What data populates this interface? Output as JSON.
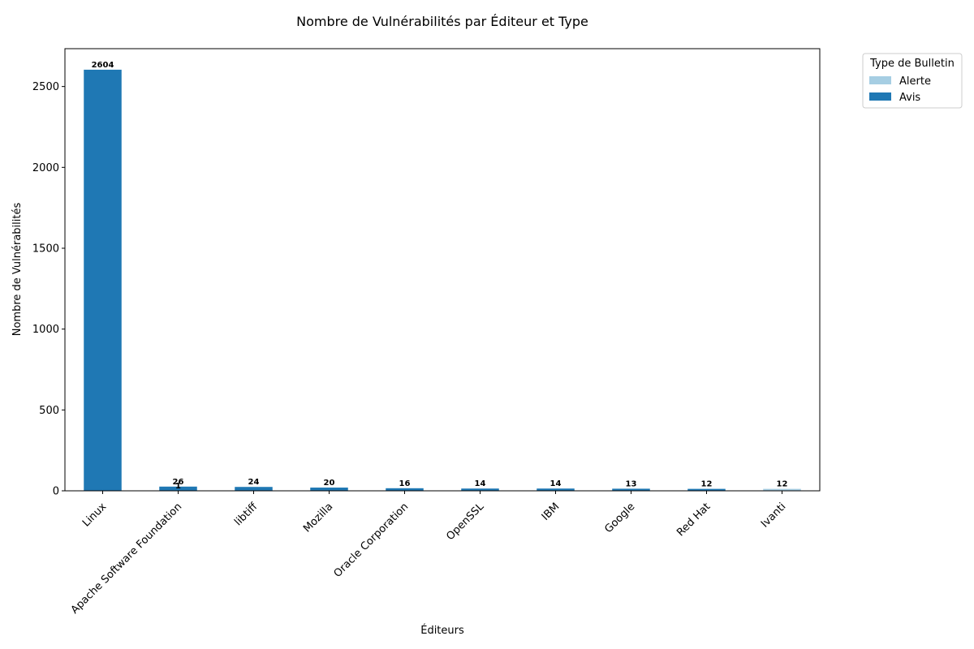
{
  "chart_data": {
    "type": "bar",
    "stacked": true,
    "title": "Nombre de Vulnérabilités par Éditeur et Type",
    "xlabel": "Éditeurs",
    "ylabel": "Nombre de Vulnérabilités",
    "ylim": [
      0,
      2734
    ],
    "yticks": [
      0,
      500,
      1000,
      1500,
      2000,
      2500
    ],
    "grid": false,
    "categories": [
      "Linux",
      "Apache Software Foundation",
      "libtiff",
      "Mozilla",
      "Oracle Corporation",
      "OpenSSL",
      "IBM",
      "Google",
      "Red Hat",
      "Ivanti"
    ],
    "series": [
      {
        "name": "Alerte",
        "color": "#a6cee3",
        "values": [
          0,
          1,
          0,
          0,
          0,
          0,
          0,
          0,
          0,
          12
        ]
      },
      {
        "name": "Avis",
        "color": "#1f78b4",
        "values": [
          2604,
          25,
          24,
          20,
          16,
          14,
          14,
          13,
          12,
          0
        ]
      }
    ],
    "data_labels": [
      "2604",
      "26",
      "24",
      "20",
      "16",
      "14",
      "14",
      "13",
      "12",
      "12"
    ],
    "segment_labels": [
      {
        "category": "Apache Software Foundation",
        "series": "Alerte",
        "text": "1"
      }
    ],
    "legend": {
      "title": "Type de Bulletin",
      "placement": "outside-top-right"
    }
  }
}
